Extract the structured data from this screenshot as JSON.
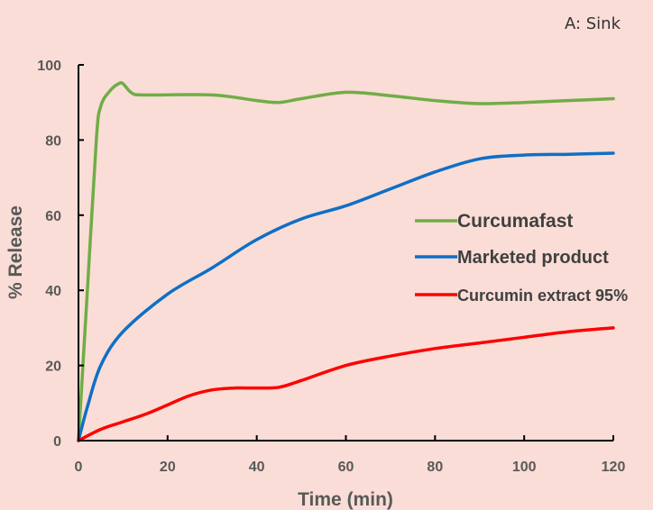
{
  "panel_label": "A: Sink",
  "chart_data": {
    "type": "line",
    "title": "",
    "xlabel": "Time (min)",
    "ylabel": "% Release",
    "xlim": [
      0,
      120
    ],
    "ylim": [
      0,
      100
    ],
    "x_ticks": [
      0,
      20,
      40,
      60,
      80,
      100,
      120
    ],
    "y_ticks": [
      0,
      20,
      40,
      60,
      80,
      100
    ],
    "grid": false,
    "legend_position": "right",
    "series": [
      {
        "name": "Curcumafast",
        "color": "#70AD47",
        "points": [
          [
            0,
            0
          ],
          [
            2,
            40
          ],
          [
            4,
            80
          ],
          [
            5,
            89
          ],
          [
            7,
            93
          ],
          [
            9,
            95
          ],
          [
            10,
            95
          ],
          [
            12,
            92.5
          ],
          [
            15,
            92
          ],
          [
            30,
            92
          ],
          [
            40,
            90.5
          ],
          [
            45,
            90
          ],
          [
            50,
            91
          ],
          [
            60,
            92.7
          ],
          [
            70,
            91.8
          ],
          [
            80,
            90.5
          ],
          [
            90,
            89.7
          ],
          [
            100,
            90
          ],
          [
            110,
            90.5
          ],
          [
            120,
            91
          ]
        ]
      },
      {
        "name": "Marketed product",
        "color": "#0F6FC6",
        "points": [
          [
            0,
            0
          ],
          [
            2,
            9
          ],
          [
            5,
            20
          ],
          [
            10,
            29
          ],
          [
            20,
            39
          ],
          [
            30,
            46
          ],
          [
            40,
            53.5
          ],
          [
            50,
            59
          ],
          [
            60,
            62.5
          ],
          [
            70,
            67
          ],
          [
            80,
            71.5
          ],
          [
            90,
            75
          ],
          [
            100,
            76
          ],
          [
            110,
            76.2
          ],
          [
            120,
            76.5
          ]
        ]
      },
      {
        "name": "Curcumin extract 95%",
        "color": "#FF0000",
        "points": [
          [
            0,
            0
          ],
          [
            5,
            3
          ],
          [
            10,
            5
          ],
          [
            15,
            7
          ],
          [
            20,
            9.5
          ],
          [
            25,
            12
          ],
          [
            30,
            13.5
          ],
          [
            35,
            14
          ],
          [
            40,
            14
          ],
          [
            45,
            14.2
          ],
          [
            50,
            16
          ],
          [
            60,
            20
          ],
          [
            70,
            22.5
          ],
          [
            80,
            24.5
          ],
          [
            90,
            26
          ],
          [
            100,
            27.5
          ],
          [
            110,
            29
          ],
          [
            120,
            30
          ]
        ]
      }
    ]
  }
}
